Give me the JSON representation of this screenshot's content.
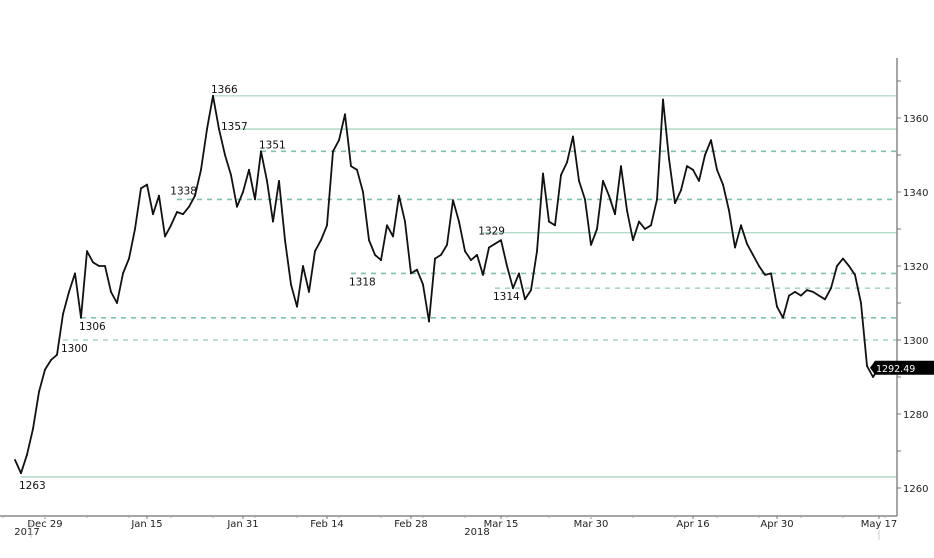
{
  "chart_data": {
    "type": "line",
    "title": "",
    "xlabel": "",
    "ylabel": "",
    "ylim": [
      1250,
      1372
    ],
    "xlim": [
      "2017-12-21",
      "2018-05-20"
    ],
    "grid": false,
    "y_axis_side": "right",
    "y_ticks": [
      1260,
      1280,
      1300,
      1320,
      1340,
      1360
    ],
    "x_ticks": [
      {
        "date": "2017-12-29",
        "label": "Dec 29"
      },
      {
        "date": "2018-01-15",
        "label": "Jan 15"
      },
      {
        "date": "2018-01-31",
        "label": "Jan 31"
      },
      {
        "date": "2018-02-14",
        "label": "Feb 14"
      },
      {
        "date": "2018-02-28",
        "label": "Feb 28"
      },
      {
        "date": "2018-03-15",
        "label": "Mar 15"
      },
      {
        "date": "2018-03-30",
        "label": "Mar 30"
      },
      {
        "date": "2018-04-16",
        "label": "Apr 16"
      },
      {
        "date": "2018-04-30",
        "label": "Apr 30"
      },
      {
        "date": "2018-05-17",
        "label": "May 17"
      }
    ],
    "year_labels": [
      {
        "date": "2017-12-26",
        "label": "2017"
      },
      {
        "date": "2018-03-11",
        "label": "2018"
      }
    ],
    "series": [
      {
        "color": "#111111",
        "dates": [
          "2017-12-24",
          "2017-12-25",
          "2017-12-26",
          "2017-12-27",
          "2017-12-28",
          "2017-12-29",
          "2017-12-30",
          "2017-12-31",
          "2018-01-01",
          "2018-01-02",
          "2018-01-03",
          "2018-01-04",
          "2018-01-05",
          "2018-01-06",
          "2018-01-07",
          "2018-01-08",
          "2018-01-09",
          "2018-01-10",
          "2018-01-11",
          "2018-01-12",
          "2018-01-13",
          "2018-01-14",
          "2018-01-15",
          "2018-01-16",
          "2018-01-17",
          "2018-01-18",
          "2018-01-19",
          "2018-01-20",
          "2018-01-21",
          "2018-01-22",
          "2018-01-23",
          "2018-01-24",
          "2018-01-25",
          "2018-01-26",
          "2018-01-27",
          "2018-01-28",
          "2018-01-29",
          "2018-01-30",
          "2018-01-31",
          "2018-02-01",
          "2018-02-02",
          "2018-02-03",
          "2018-02-04",
          "2018-02-05",
          "2018-02-06",
          "2018-02-07",
          "2018-02-08",
          "2018-02-09",
          "2018-02-10",
          "2018-02-11",
          "2018-02-12",
          "2018-02-13",
          "2018-02-14",
          "2018-02-15",
          "2018-02-16",
          "2018-02-17",
          "2018-02-18",
          "2018-02-19",
          "2018-02-20",
          "2018-02-21",
          "2018-02-22",
          "2018-02-23",
          "2018-02-24",
          "2018-02-25",
          "2018-02-26",
          "2018-02-27",
          "2018-02-28",
          "2018-03-01",
          "2018-03-02",
          "2018-03-03",
          "2018-03-04",
          "2018-03-05",
          "2018-03-06",
          "2018-03-07",
          "2018-03-08",
          "2018-03-09",
          "2018-03-10",
          "2018-03-11",
          "2018-03-12",
          "2018-03-13",
          "2018-03-14",
          "2018-03-15",
          "2018-03-16",
          "2018-03-17",
          "2018-03-18",
          "2018-03-19",
          "2018-03-20",
          "2018-03-21",
          "2018-03-22",
          "2018-03-23",
          "2018-03-24",
          "2018-03-25",
          "2018-03-26",
          "2018-03-27",
          "2018-03-28",
          "2018-03-29",
          "2018-03-30",
          "2018-03-31",
          "2018-04-01",
          "2018-04-02",
          "2018-04-03",
          "2018-04-04",
          "2018-04-05",
          "2018-04-06",
          "2018-04-07",
          "2018-04-08",
          "2018-04-09",
          "2018-04-10",
          "2018-04-11",
          "2018-04-12",
          "2018-04-13",
          "2018-04-14",
          "2018-04-15",
          "2018-04-16",
          "2018-04-17",
          "2018-04-18",
          "2018-04-19",
          "2018-04-20",
          "2018-04-21",
          "2018-04-22",
          "2018-04-23",
          "2018-04-24",
          "2018-04-25",
          "2018-04-26",
          "2018-04-27",
          "2018-04-28",
          "2018-04-29",
          "2018-04-30",
          "2018-05-01",
          "2018-05-02",
          "2018-05-03",
          "2018-05-04",
          "2018-05-05",
          "2018-05-06",
          "2018-05-07",
          "2018-05-08",
          "2018-05-09",
          "2018-05-10",
          "2018-05-11",
          "2018-05-12",
          "2018-05-13",
          "2018-05-14",
          "2018-05-15",
          "2018-05-16",
          "2018-05-17"
        ],
        "values": [
          1267.6,
          1264,
          1269,
          1276,
          1286,
          1292,
          1294.6,
          1296,
          1307,
          1313,
          1318,
          1306,
          1324,
          1321,
          1320,
          1320,
          1313,
          1310,
          1318,
          1322,
          1330,
          1341,
          1342,
          1334,
          1339,
          1328,
          1331,
          1334.6,
          1334,
          1336,
          1339,
          1346,
          1357,
          1366,
          1357,
          1350,
          1344.6,
          1336,
          1340,
          1346,
          1338,
          1351,
          1343,
          1332,
          1343,
          1327,
          1315,
          1309,
          1320,
          1313,
          1324,
          1327,
          1331,
          1351,
          1354,
          1361,
          1347,
          1346,
          1340,
          1327,
          1323,
          1321.6,
          1331,
          1328,
          1339,
          1332,
          1318,
          1319,
          1315,
          1305,
          1322,
          1323,
          1325.7,
          1337.8,
          1332,
          1324,
          1321.6,
          1323,
          1317.6,
          1325,
          1326,
          1327,
          1320,
          1314,
          1318,
          1311,
          1313.5,
          1324,
          1345,
          1332,
          1331,
          1344.6,
          1348,
          1355,
          1343,
          1338,
          1325.7,
          1330,
          1343,
          1339,
          1334,
          1347,
          1335,
          1327,
          1332,
          1330,
          1331,
          1338,
          1365,
          1349,
          1337,
          1340.5,
          1347,
          1346,
          1343,
          1350,
          1354,
          1346,
          1342,
          1335,
          1325,
          1331,
          1326,
          1323,
          1320,
          1317.6,
          1318,
          1309,
          1306,
          1312,
          1313,
          1312,
          1313.5,
          1313,
          1312,
          1311,
          1314,
          1320,
          1322,
          1320,
          1317.6,
          1310,
          1293,
          1290,
          1292.49
        ]
      }
    ],
    "last_value": {
      "label": "1292.49",
      "value": 1292.49,
      "color": "#000000"
    },
    "reference_lines": [
      {
        "value": 1366,
        "label": "1366",
        "style": "solid",
        "from": "2018-01-26",
        "label_pos": "above",
        "color": "#b9dcc9"
      },
      {
        "value": 1357,
        "label": "1357",
        "style": "solid",
        "from": "2018-01-30",
        "label_pos": "left-above",
        "color": "#a9d8c0"
      },
      {
        "value": 1351,
        "label": "1351",
        "style": "dashed",
        "from": "2018-02-03",
        "label_pos": "above",
        "color": "#7fc4a6"
      },
      {
        "value": 1338,
        "label": "1338",
        "style": "dashed",
        "from": "2018-01-20",
        "label_pos": "left-above",
        "color": "#7fc4a6"
      },
      {
        "value": 1329,
        "label": "1329",
        "style": "solid",
        "from": "2018-03-12",
        "label_pos": "left",
        "color": "#b1dcc7"
      },
      {
        "value": 1318,
        "label": "1318",
        "style": "dashed",
        "from": "2018-02-18",
        "label_pos": "below",
        "color": "#7fc4a6"
      },
      {
        "value": 1314,
        "label": "1314",
        "style": "dashed-light",
        "from": "2018-03-14",
        "label_pos": "below",
        "color": "#a6d6bf"
      },
      {
        "value": 1306,
        "label": "1306",
        "style": "dashed",
        "from": "2018-01-04",
        "label_pos": "below",
        "color": "#7fc4a6"
      },
      {
        "value": 1300,
        "label": "1300",
        "style": "dashed-light",
        "from": "2018-01-01",
        "label_pos": "below",
        "color": "#a6d6bf"
      },
      {
        "value": 1263,
        "label": "1263",
        "style": "solid",
        "from": "2017-12-25",
        "label_pos": "below",
        "color": "#a9d8c0"
      }
    ]
  }
}
